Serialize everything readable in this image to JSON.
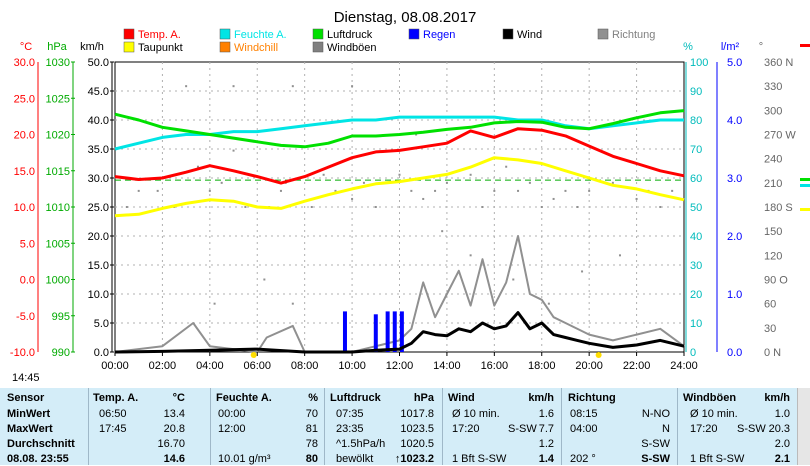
{
  "chart_data": {
    "type": "line",
    "title": "Dienstag, 08.08.2017",
    "x_ticks": [
      "00:00",
      "02:00",
      "04:00",
      "06:00",
      "08:00",
      "10:00",
      "12:00",
      "14:00",
      "16:00",
      "18:00",
      "20:00",
      "22:00",
      "24:00"
    ],
    "xlim": [
      0,
      24
    ],
    "axes": [
      {
        "unit": "°C",
        "color": "#ff0000",
        "ticks": [
          "30.0",
          "25.0",
          "20.0",
          "15.0",
          "10.0",
          "5.0",
          "0.0",
          "-5.0",
          "-10.0"
        ],
        "range": [
          -10,
          30
        ]
      },
      {
        "unit": "hPa",
        "color": "#00aa00",
        "ticks": [
          "1030",
          "1025",
          "1020",
          "1015",
          "1010",
          "1005",
          "1000",
          "995",
          "990"
        ],
        "range": [
          990,
          1030
        ]
      },
      {
        "unit": "km/h",
        "color": "#000000",
        "ticks": [
          "50.0",
          "45.0",
          "40.0",
          "35.0",
          "30.0",
          "25.0",
          "20.0",
          "15.0",
          "10.0",
          "5.0",
          "0.0"
        ],
        "range": [
          0,
          50
        ]
      },
      {
        "unit": "%",
        "color": "#00bbbb",
        "ticks": [
          "100",
          "90",
          "80",
          "70",
          "60",
          "50",
          "40",
          "30",
          "20",
          "10",
          "0"
        ],
        "range": [
          0,
          100
        ]
      },
      {
        "unit": "l/m²",
        "color": "#0000ff",
        "ticks": [
          "5.0",
          "4.0",
          "3.0",
          "2.0",
          "1.0",
          "0.0"
        ],
        "range": [
          0,
          5
        ]
      },
      {
        "unit": "°",
        "color": "#666666",
        "ticks": [
          "360 N",
          "330",
          "300",
          "270 W",
          "240",
          "210",
          "180 S",
          "150",
          "120",
          "90 O",
          "60",
          "30",
          "0 N"
        ],
        "range": [
          0,
          360
        ]
      }
    ],
    "legend": [
      {
        "name": "Temp. A.",
        "color": "#ff0000"
      },
      {
        "name": "Feuchte A.",
        "color": "#00e5e5"
      },
      {
        "name": "Luftdruck",
        "color": "#00e000"
      },
      {
        "name": "Regen",
        "color": "#0000ff"
      },
      {
        "name": "Wind",
        "color": "#000000"
      },
      {
        "name": "Richtung",
        "color": "#909090"
      },
      {
        "name": "Taupunkt",
        "color": "#ffff00"
      },
      {
        "name": "Windchill",
        "color": "#ff8000"
      },
      {
        "name": "Windböen",
        "color": "#808080"
      }
    ],
    "series": [
      {
        "name": "Temp. A.",
        "axis": "°C",
        "color": "#ff0000",
        "x": [
          0,
          1,
          2,
          3,
          4,
          5,
          6,
          7,
          8,
          9,
          10,
          11,
          12,
          13,
          14,
          15,
          16,
          17,
          18,
          19,
          20,
          21,
          22,
          23,
          24
        ],
        "y": [
          14.2,
          13.8,
          14.0,
          14.8,
          15.7,
          15.0,
          14.2,
          13.3,
          14.2,
          15.5,
          16.8,
          17.6,
          17.8,
          18.3,
          18.8,
          20.5,
          19.6,
          20.8,
          20.6,
          19.8,
          18.4,
          17.0,
          16.0,
          15.0,
          14.3
        ]
      },
      {
        "name": "Taupunkt",
        "axis": "°C",
        "color": "#ffff00",
        "x": [
          0,
          1,
          2,
          3,
          4,
          5,
          6,
          7,
          8,
          9,
          10,
          11,
          12,
          13,
          14,
          15,
          16,
          17,
          18,
          19,
          20,
          21,
          22,
          23,
          24
        ],
        "y": [
          8.8,
          9.0,
          9.8,
          10.5,
          11.0,
          10.8,
          10.0,
          9.8,
          10.8,
          11.7,
          12.5,
          13.2,
          13.5,
          14.0,
          14.5,
          15.5,
          16.8,
          16.5,
          16.0,
          15.0,
          14.0,
          13.0,
          12.5,
          11.7,
          11.0
        ]
      },
      {
        "name": "Feuchte A.",
        "axis": "%",
        "color": "#00e5e5",
        "x": [
          0,
          1,
          2,
          3,
          4,
          5,
          6,
          7,
          8,
          9,
          10,
          11,
          12,
          13,
          14,
          15,
          16,
          17,
          18,
          19,
          20,
          21,
          22,
          23,
          24
        ],
        "y": [
          70,
          72,
          74,
          75,
          75,
          76,
          76,
          77,
          78,
          79,
          80,
          80,
          81,
          81,
          81,
          81,
          81,
          80,
          80,
          78,
          77,
          78,
          79,
          80,
          80
        ]
      },
      {
        "name": "Luftdruck",
        "axis": "hPa",
        "color": "#00e000",
        "x": [
          0,
          1,
          2,
          3,
          4,
          5,
          6,
          7,
          8,
          9,
          10,
          11,
          12,
          13,
          14,
          15,
          16,
          17,
          18,
          19,
          20,
          21,
          22,
          23,
          24
        ],
        "y": [
          1022.8,
          1022.0,
          1021.0,
          1020.5,
          1020.0,
          1019.5,
          1019.0,
          1018.5,
          1018.3,
          1018.8,
          1019.8,
          1019.8,
          1020.0,
          1020.3,
          1020.7,
          1021.0,
          1021.6,
          1021.8,
          1021.7,
          1021.0,
          1020.8,
          1021.5,
          1022.3,
          1023.0,
          1023.3
        ]
      },
      {
        "name": "Wind",
        "axis": "km/h",
        "color": "#000000",
        "x": [
          0,
          2,
          4,
          6,
          8,
          10,
          11,
          12,
          12.5,
          13,
          13.5,
          14,
          14.5,
          15,
          15.5,
          16,
          16.5,
          17,
          17.5,
          18,
          18.5,
          19,
          19.5,
          20,
          21,
          22,
          23,
          24
        ],
        "y": [
          0,
          0.1,
          0.3,
          0.5,
          0,
          0,
          0.3,
          0.5,
          1.5,
          3.5,
          3.0,
          2.8,
          4.0,
          3.5,
          5.0,
          4.0,
          4.5,
          6.8,
          4.0,
          5.0,
          3.0,
          2.5,
          2.0,
          1.5,
          0.8,
          1.2,
          2.0,
          1.0
        ]
      },
      {
        "name": "Windböen",
        "axis": "km/h",
        "color": "#909090",
        "x": [
          0,
          2,
          3.3,
          4,
          6,
          6.4,
          7.5,
          8,
          10,
          11,
          12,
          12.5,
          13,
          13.5,
          14,
          14.5,
          15,
          15.5,
          16,
          16.5,
          17,
          17.5,
          18,
          18.5,
          19,
          20,
          21,
          22,
          23,
          24
        ],
        "y": [
          0,
          1.0,
          5.0,
          1.0,
          0,
          2.5,
          4.5,
          0,
          0,
          1.0,
          2.0,
          4.0,
          12.0,
          6.0,
          10.0,
          14.0,
          8.0,
          16.0,
          8.0,
          12.0,
          20.0,
          10.0,
          9.0,
          6.0,
          5.0,
          3.0,
          2.0,
          3.0,
          4.0,
          1.0
        ]
      },
      {
        "name": "Regen",
        "axis": "l/m²",
        "color": "#0000ff",
        "type": "bar",
        "x": [
          9.7,
          11.0,
          11.5,
          11.8,
          12.1
        ],
        "y": [
          0.7,
          0.65,
          0.7,
          0.7,
          0.7
        ]
      },
      {
        "name": "Richtung",
        "axis": "°",
        "color": "#909090",
        "type": "scatter",
        "x": [
          0.5,
          1,
          1.8,
          2.5,
          3.5,
          4,
          4.5,
          5,
          5.5,
          6.3,
          6.5,
          7,
          7.2,
          7.5,
          8.3,
          8.8,
          9.3,
          10,
          10.5,
          11,
          12,
          12.5,
          13,
          13.5,
          14,
          15,
          15.5,
          16,
          16.5,
          17,
          17.5,
          18,
          18.5,
          19,
          19.5,
          20,
          21,
          22,
          22.5,
          23,
          23.5,
          3,
          5,
          7.5,
          10,
          12.7,
          13.8,
          15,
          16.8,
          18.3,
          19.7,
          21.3,
          4.2
        ],
        "y": [
          180,
          200,
          200,
          180,
          230,
          200,
          210,
          250,
          180,
          90,
          180,
          200,
          210,
          60,
          180,
          220,
          200,
          190,
          210,
          180,
          220,
          200,
          190,
          200,
          210,
          220,
          180,
          200,
          230,
          200,
          210,
          180,
          190,
          200,
          180,
          200,
          210,
          190,
          200,
          180,
          200,
          330,
          330,
          330,
          330,
          270,
          150,
          120,
          90,
          60,
          100,
          120,
          60
        ]
      }
    ],
    "ref_lines": [
      {
        "axis": "°C",
        "y": 13.7,
        "color": "#00aa00",
        "style": "dashed"
      }
    ],
    "markers": [
      "14:45"
    ]
  },
  "table": {
    "headers": {
      "sensor": "Sensor",
      "temp": "Temp. A.",
      "temp_unit": "°C",
      "hum": "Feuchte A.",
      "hum_unit": "%",
      "press": "Luftdruck",
      "press_unit": "hPa",
      "wind": "Wind",
      "wind_unit": "km/h",
      "dir": "Richtung",
      "gust": "Windböen",
      "gust_unit": "km/h"
    },
    "rows": [
      {
        "label": "MinWert",
        "t_time": "06:50",
        "t_val": "13.4",
        "h_time": "00:00",
        "h_val": "70",
        "p_time": "07:35",
        "p_val": "1017.8",
        "w_time": "Ø 10 min.",
        "w_val": "1.6",
        "d_time": "08:15",
        "d_val": "N-NO",
        "g_time": "Ø 10 min.",
        "g_val": "1.0"
      },
      {
        "label": "MaxWert",
        "t_time": "17:45",
        "t_val": "20.8",
        "h_time": "12:00",
        "h_val": "81",
        "p_time": "23:35",
        "p_val": "1023.5",
        "w_time": "17:20",
        "w_dir": "S-SW",
        "w_val": "7.7",
        "d_time": "04:00",
        "d_val": "N",
        "g_time": "17:20",
        "g_dir": "S-SW",
        "g_val": "20.3"
      },
      {
        "label": "Durchschnitt",
        "t_time": "",
        "t_val": "16.70",
        "h_time": "",
        "h_val": "78",
        "p_time": "^1.5hPa/h",
        "p_val": "1020.5",
        "w_time": "",
        "w_val": "1.2",
        "d_time": "",
        "d_val": "S-SW",
        "g_time": "",
        "g_val": "2.0"
      },
      {
        "label": "08.08. 23:55",
        "t_time": "",
        "t_val": "14.6",
        "h_time": "10.01 g/m³",
        "h_val": "80",
        "p_time": "bewölkt",
        "p_val": "↑1023.2",
        "w_time": "1 Bft S-SW",
        "w_val": "1.4",
        "d_time": "202 °",
        "d_val": "S-SW",
        "g_time": "1 Bft S-SW",
        "g_val": "2.1"
      }
    ]
  }
}
